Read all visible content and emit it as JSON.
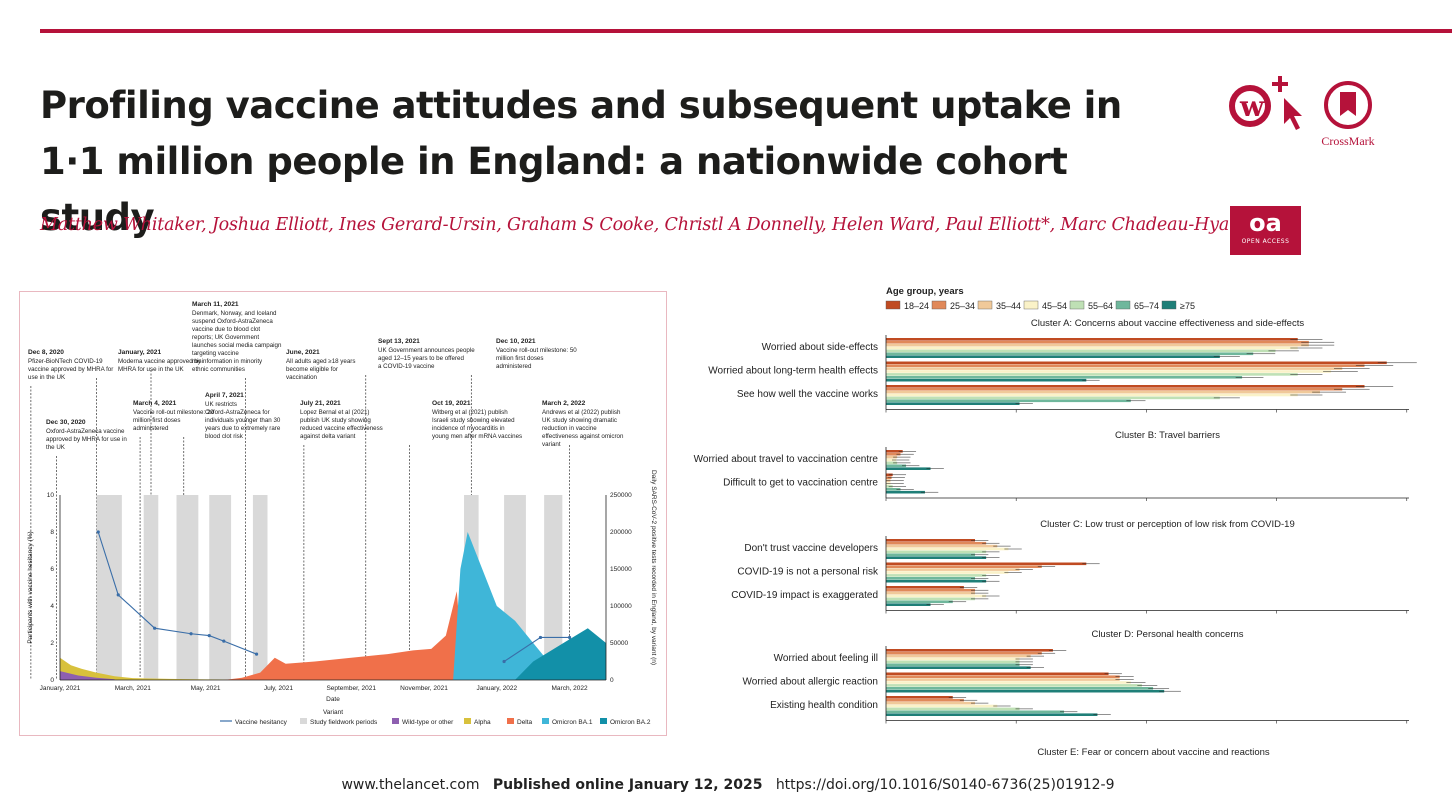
{
  "header": {
    "title": "Profiling vaccine attitudes and subsequent uptake in 1·1 million people in England: a nationwide cohort study",
    "authors": "Matthew Whitaker, Joshua Elliott, Ines Gerard-Ursin, Graham S Cooke, Christl A Donnelly, Helen Ward, Paul Elliott*, Marc Chadeau-Hyam*",
    "crossmark_label": "CrossMark",
    "oa_big": "oa",
    "oa_small": "OPEN ACCESS"
  },
  "colors": {
    "brand": "#b5123a"
  },
  "timeline_fig": {
    "annotations": [
      {
        "date": "Dec 8, 2020",
        "text": "Pfizer-BioNTech COVID-19 vaccine approved by MHRA for use in the UK"
      },
      {
        "date": "Dec 30, 2020",
        "text": "Oxford-AstraZeneca vaccine approved by MHRA for use in the UK"
      },
      {
        "date": "January, 2021",
        "text": "Moderna vaccine approved by MHRA for use in the UK"
      },
      {
        "date": "March 4, 2021",
        "text": "Vaccine roll-out milestone: 20 million first doses administered"
      },
      {
        "date": "March 11, 2021",
        "text": "Denmark, Norway, and Iceland suspend Oxford-AstraZeneca vaccine due to blood clot reports; UK Government launches social media campaign targeting vaccine misinformation in minority ethnic communities"
      },
      {
        "date": "April 7, 2021",
        "text": "UK restricts Oxford-AstraZeneca for individuals younger than 30 years due to extremely rare blood clot risk"
      },
      {
        "date": "June, 2021",
        "text": "All adults aged ≥18 years become eligible for vaccination"
      },
      {
        "date": "July 21, 2021",
        "text": "Lopez Bernal et al (2021) publish UK study showing reduced vaccine effectiveness against delta variant"
      },
      {
        "date": "Sept 13, 2021",
        "text": "UK Government announces people aged 12–15 years to be offered a COVID-19 vaccine"
      },
      {
        "date": "Oct 19, 2021",
        "text": "Witberg et al (2021) publish Israeli study showing elevated incidence of myocarditis in young men after mRNA vaccines"
      },
      {
        "date": "Dec 10, 2021",
        "text": "Vaccine roll-out milestone: 50 million first doses administered"
      },
      {
        "date": "March 2, 2022",
        "text": "Andrews et al (2022) publish UK study showing dramatic reduction in vaccine effectiveness against omicron variant"
      }
    ],
    "y_left_label": "Participants with vaccine hesitancy (%)",
    "y_left_ticks": [
      "0",
      "2",
      "4",
      "6",
      "8",
      "10"
    ],
    "y_right_label": "Daily SARS-CoV-2 positive tests recorded in England, by variant (n)",
    "y_right_ticks": [
      "0",
      "50000",
      "100000",
      "150000",
      "200000",
      "250000"
    ],
    "x_ticks": [
      "January, 2021",
      "March, 2021",
      "May, 2021",
      "July, 2021",
      "September, 2021",
      "November, 2021",
      "January, 2022",
      "March, 2022"
    ],
    "x_label": "Date",
    "legend_title": "Variant",
    "legend": [
      {
        "label": "Vaccine hesitancy",
        "color": "#3a6ea8"
      },
      {
        "label": "Study fieldwork periods",
        "color": "#d9d9d9"
      },
      {
        "label": "Wild-type or other",
        "color": "#8e5fb0"
      },
      {
        "label": "Alpha",
        "color": "#d8c13c"
      },
      {
        "label": "Delta",
        "color": "#f0704a"
      },
      {
        "label": "Omicron BA.1",
        "color": "#3fb6d8"
      },
      {
        "label": "Omicron BA.2",
        "color": "#1290a8"
      }
    ],
    "hesitancy_points": [
      {
        "month": 1.05,
        "pct": 8.0
      },
      {
        "month": 1.6,
        "pct": 4.6
      },
      {
        "month": 2.6,
        "pct": 2.8
      },
      {
        "month": 3.6,
        "pct": 2.5
      },
      {
        "month": 4.1,
        "pct": 2.4
      },
      {
        "month": 4.5,
        "pct": 2.1
      },
      {
        "month": 5.4,
        "pct": 1.4
      },
      {
        "month": 12.2,
        "pct": 1.0
      },
      {
        "month": 13.2,
        "pct": 2.3
      },
      {
        "month": 14.0,
        "pct": 2.3
      }
    ]
  },
  "bars_fig": {
    "legend_title": "Age group, years",
    "age_groups": [
      "18–24",
      "25–34",
      "35–44",
      "45–54",
      "55–64",
      "65–74",
      "≥75"
    ],
    "age_colors": [
      "#c04b22",
      "#e0895a",
      "#f0c99a",
      "#faf2c8",
      "#bfe0b5",
      "#6fb79c",
      "#1f7f78"
    ],
    "clusters": [
      {
        "title": "Cluster A: Concerns about vaccine effectiveness and side-effects",
        "items": [
          {
            "label": "Worried about side-effects",
            "values": [
              37,
              38,
              38,
              37,
              35,
              33,
              30
            ]
          },
          {
            "label": "Worried about long-term health effects",
            "values": [
              45,
              43,
              41,
              40,
              37,
              32,
              18
            ]
          },
          {
            "label": "See how well the vaccine works",
            "values": [
              43,
              41,
              39,
              37,
              30,
              22,
              12
            ]
          }
        ]
      },
      {
        "title": "Cluster B: Travel barriers",
        "items": [
          {
            "label": "Worried about travel to vaccination centre",
            "values": [
              1.5,
              1.3,
              1.0,
              0.9,
              1.0,
              1.8,
              4.0
            ]
          },
          {
            "label": "Difficult to get to vaccination centre",
            "values": [
              0.6,
              0.5,
              0.4,
              0.4,
              0.6,
              1.3,
              3.5
            ]
          }
        ]
      },
      {
        "title": "Cluster C: Low trust or perception of low risk from COVID-19",
        "items": [
          {
            "label": "Don't trust vaccine developers",
            "values": [
              8,
              9,
              10,
              11,
              9,
              8,
              9
            ]
          },
          {
            "label": "COVID-19 is not a personal risk",
            "values": [
              18,
              14,
              12,
              11,
              9,
              8,
              9
            ]
          },
          {
            "label": "COVID-19 impact is exaggerated",
            "values": [
              7,
              8,
              8,
              9,
              8,
              6,
              4
            ]
          }
        ]
      },
      {
        "title": "Cluster D: Personal health concerns",
        "items": [
          {
            "label": "Worried about feeling ill",
            "values": [
              15,
              14,
              13,
              12,
              12,
              12,
              13
            ]
          },
          {
            "label": "Worried about allergic reaction",
            "values": [
              20,
              21,
              21,
              22,
              23,
              24,
              25
            ]
          },
          {
            "label": "Existing health condition",
            "values": [
              6,
              7,
              8,
              10,
              12,
              16,
              19
            ]
          }
        ]
      }
    ],
    "cluster_e_title": "Cluster E: Fear or concern about vaccine and reactions"
  },
  "footer": {
    "site": "www.thelancet.com",
    "published": "Published online January 12, 2025",
    "doi": "https://doi.org/10.1016/S0140-6736(25)01912-9"
  }
}
